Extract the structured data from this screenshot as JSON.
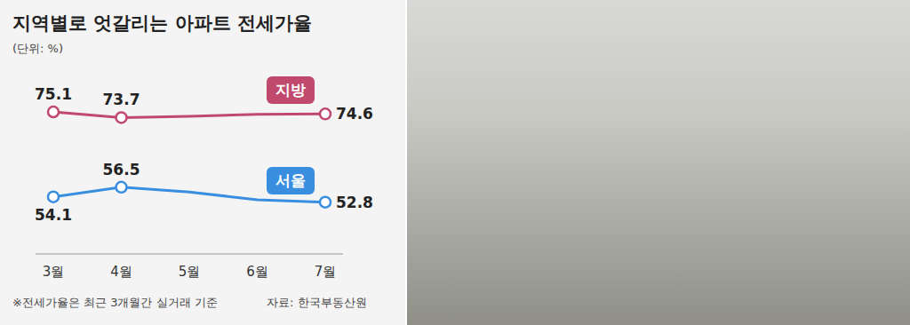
{
  "chart_data": {
    "type": "line",
    "title": "지역별로 엇갈리는 아파트 전세가율",
    "subtitle": "(단위: %)",
    "note": "※전세가율은 최근 3개월간 실거래 기준",
    "source": "자료: 한국부동산원",
    "categories": [
      "3월",
      "4월",
      "5월",
      "6월",
      "7월"
    ],
    "series": [
      {
        "name": "지방",
        "color": "#c04a6e",
        "marker": "circle",
        "values": [
          75.1,
          73.7,
          74.0,
          74.5,
          74.6
        ],
        "value_labels": [
          "75.1",
          "73.7",
          null,
          null,
          "74.6"
        ]
      },
      {
        "name": "서울",
        "color": "#3a8ee0",
        "marker": "circle",
        "values": [
          54.1,
          56.5,
          55.3,
          53.4,
          52.8
        ],
        "value_labels": [
          "54.1",
          "56.5",
          null,
          null,
          "52.8"
        ]
      }
    ],
    "ylim": [
      40,
      83
    ],
    "data_labels": true,
    "tick_labels": "x",
    "grid": false
  }
}
